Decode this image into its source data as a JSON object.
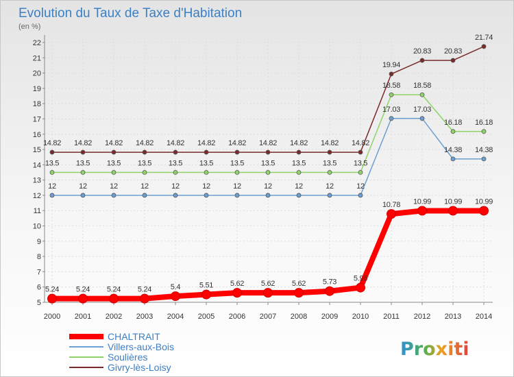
{
  "chart_data": {
    "type": "line",
    "title": "Evolution du Taux de Taxe d'Habitation",
    "unit": "(en %)",
    "x": [
      "2000",
      "2001",
      "2002",
      "2003",
      "2004",
      "2005",
      "2006",
      "2007",
      "2008",
      "2009",
      "2010",
      "2011",
      "2012",
      "2013",
      "2014"
    ],
    "ylim": [
      5,
      22
    ],
    "y_ticks": [
      5,
      6,
      7,
      8,
      9,
      10,
      11,
      12,
      13,
      14,
      15,
      16,
      17,
      18,
      19,
      20,
      21,
      22
    ],
    "grid": true,
    "legend_position": "bottom-left",
    "series": [
      {
        "name": "Givry-lès-Loisy",
        "color": "#7a2a2a",
        "values": [
          14.82,
          14.82,
          14.82,
          14.82,
          14.82,
          14.82,
          14.82,
          14.82,
          14.82,
          14.82,
          14.82,
          19.94,
          20.83,
          20.83,
          21.74
        ],
        "labels": [
          "14.82",
          "14.82",
          "14.82",
          "14.82",
          "14.82",
          "14.82",
          "14.82",
          "14.82",
          "14.82",
          "14.82",
          "14.82",
          "19.94",
          "20.83",
          "20.83",
          "21.74"
        ]
      },
      {
        "name": "Soulières",
        "color": "#8ed268",
        "values": [
          13.5,
          13.5,
          13.5,
          13.5,
          13.5,
          13.5,
          13.5,
          13.5,
          13.5,
          13.5,
          13.5,
          18.58,
          18.58,
          16.18,
          16.18
        ],
        "labels": [
          "13.5",
          "13.5",
          "13.5",
          "13.5",
          "13.5",
          "13.5",
          "13.5",
          "13.5",
          "13.5",
          "13.5",
          "13.5",
          "18.58",
          "18.58",
          "16.18",
          "16.18"
        ]
      },
      {
        "name": "Villers-aux-Bois",
        "color": "#6c9fd2",
        "values": [
          12,
          12,
          12,
          12,
          12,
          12,
          12,
          12,
          12,
          12,
          12,
          17.03,
          17.03,
          14.38,
          14.38
        ],
        "labels": [
          "12",
          "12",
          "12",
          "12",
          "12",
          "12",
          "12",
          "12",
          "12",
          "12",
          "12",
          "17.03",
          "17.03",
          "14.38",
          "14.38"
        ]
      },
      {
        "name": "CHALTRAIT",
        "color": "#ff0000",
        "values": [
          5.24,
          5.24,
          5.24,
          5.24,
          5.4,
          5.51,
          5.62,
          5.62,
          5.62,
          5.73,
          5.96,
          10.78,
          10.99,
          10.99,
          10.99
        ],
        "labels": [
          "5.24",
          "5.24",
          "5.24",
          "5.24",
          "5.4",
          "5.51",
          "5.62",
          "5.62",
          "5.62",
          "5.73",
          "5.96",
          "10.78",
          "10.99",
          "10.99",
          "10.99"
        ]
      }
    ],
    "legend": [
      "CHALTRAIT",
      "Villers-aux-Bois",
      "Soulières",
      "Givry-lès-Loisy"
    ]
  },
  "brand": {
    "logo_text": "Proxiti"
  }
}
